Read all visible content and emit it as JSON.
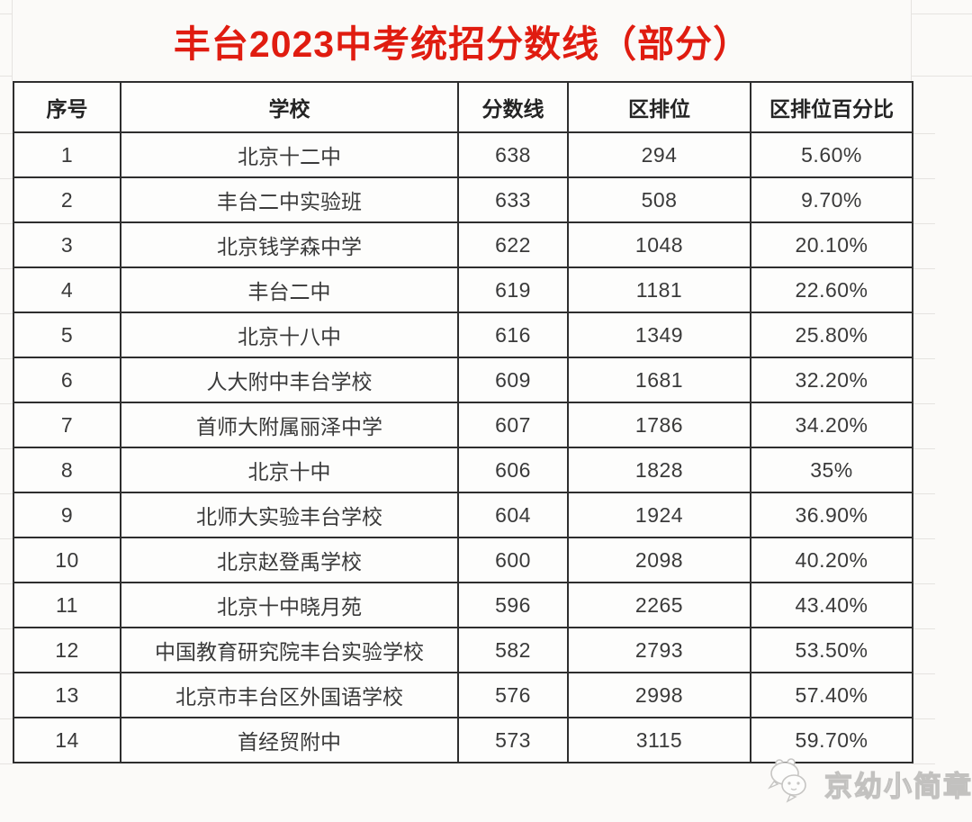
{
  "title": {
    "text": "丰台2023中考统招分数线（部分）",
    "color": "#e01c10"
  },
  "table": {
    "headers": [
      "序号",
      "学校",
      "分数线",
      "区排位",
      "区排位百分比"
    ],
    "rows": [
      [
        "1",
        "北京十二中",
        "638",
        "294",
        "5.60%"
      ],
      [
        "2",
        "丰台二中实验班",
        "633",
        "508",
        "9.70%"
      ],
      [
        "3",
        "北京钱学森中学",
        "622",
        "1048",
        "20.10%"
      ],
      [
        "4",
        "丰台二中",
        "619",
        "1181",
        "22.60%"
      ],
      [
        "5",
        "北京十八中",
        "616",
        "1349",
        "25.80%"
      ],
      [
        "6",
        "人大附中丰台学校",
        "609",
        "1681",
        "32.20%"
      ],
      [
        "7",
        "首师大附属丽泽中学",
        "607",
        "1786",
        "34.20%"
      ],
      [
        "8",
        "北京十中",
        "606",
        "1828",
        "35%"
      ],
      [
        "9",
        "北师大实验丰台学校",
        "604",
        "1924",
        "36.90%"
      ],
      [
        "10",
        "北京赵登禹学校",
        "600",
        "2098",
        "40.20%"
      ],
      [
        "11",
        "北京十中晓月苑",
        "596",
        "2265",
        "43.40%"
      ],
      [
        "12",
        "中国教育研究院丰台实验学校",
        "582",
        "2793",
        "53.50%"
      ],
      [
        "13",
        "北京市丰台区外国语学校",
        "576",
        "2998",
        "57.40%"
      ],
      [
        "14",
        "首经贸附中",
        "573",
        "3115",
        "59.70%"
      ]
    ]
  },
  "watermark": {
    "text": "京幼小简章",
    "icon": "panda-chat-bubbles-icon"
  },
  "colors": {
    "title_red": "#e01c10",
    "table_border": "#2e2e2e",
    "cell_text": "#3a3a3a",
    "background": "#fbfaf8",
    "watermark_gray": "#c2c1bf"
  }
}
